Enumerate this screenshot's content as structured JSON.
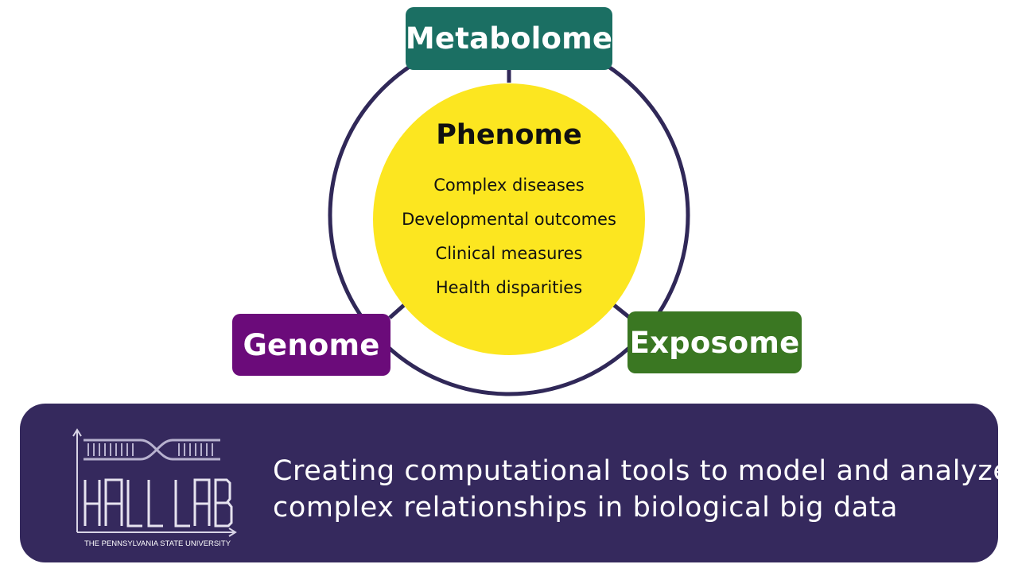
{
  "diagram": {
    "center": {
      "title": "Phenome",
      "items": [
        "Complex diseases",
        "Developmental outcomes",
        "Clinical measures",
        "Health disparities"
      ],
      "color": "#fce620"
    },
    "nodes": {
      "metabolome": {
        "label": "Metabolome",
        "color": "#1b6f63"
      },
      "genome": {
        "label": "Genome",
        "color": "#6b0b7a"
      },
      "exposome": {
        "label": "Exposome",
        "color": "#3a7722"
      }
    },
    "ring_color": "#302858"
  },
  "banner": {
    "background": "#35295d",
    "logo": {
      "name": "HALL LAB",
      "subtitle": "THE PENNSYLVANIA STATE UNIVERSITY"
    },
    "tagline": {
      "line1": "Creating computational tools to model and analyze",
      "line2": "complex relationships in biological big data"
    }
  }
}
